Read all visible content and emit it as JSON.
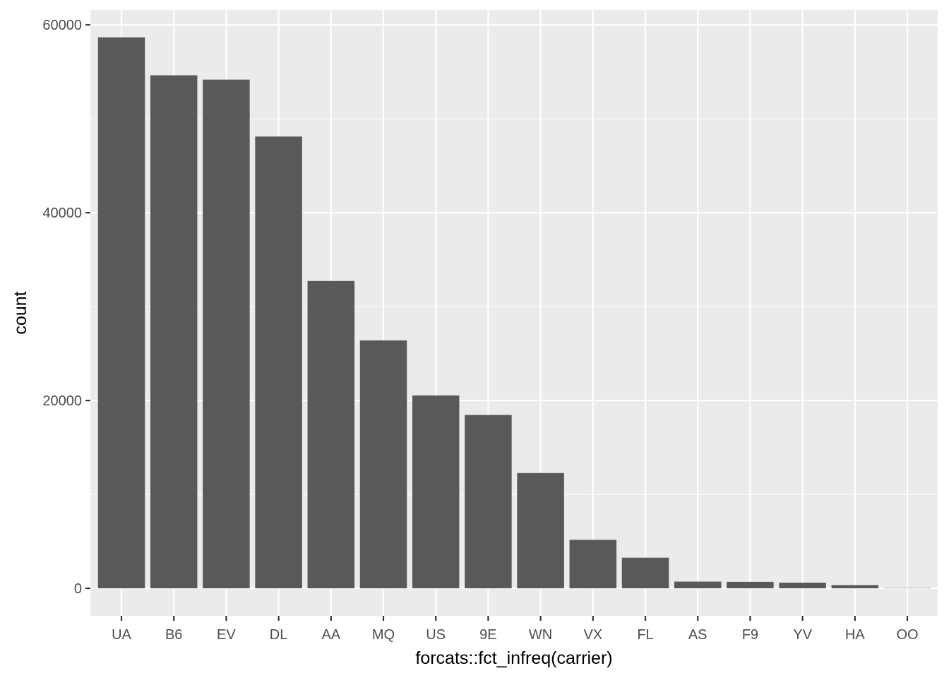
{
  "chart_data": {
    "type": "bar",
    "categories": [
      "UA",
      "B6",
      "EV",
      "DL",
      "AA",
      "MQ",
      "US",
      "9E",
      "WN",
      "VX",
      "FL",
      "AS",
      "F9",
      "YV",
      "HA",
      "OO"
    ],
    "values": [
      58665,
      54635,
      54173,
      48110,
      32729,
      26397,
      20536,
      18460,
      12275,
      5162,
      3260,
      714,
      685,
      601,
      342,
      32
    ],
    "xlabel": "forcats::fct_infreq(carrier)",
    "ylabel": "count",
    "ylim": [
      -2933,
      61598
    ],
    "yticks": [
      0,
      20000,
      40000,
      60000
    ],
    "ytick_labels": [
      "0",
      "20000",
      "40000",
      "60000"
    ],
    "grid": true,
    "colors": {
      "bar": "#595959",
      "panel": "#EBEBEB",
      "grid": "#FFFFFF"
    }
  }
}
